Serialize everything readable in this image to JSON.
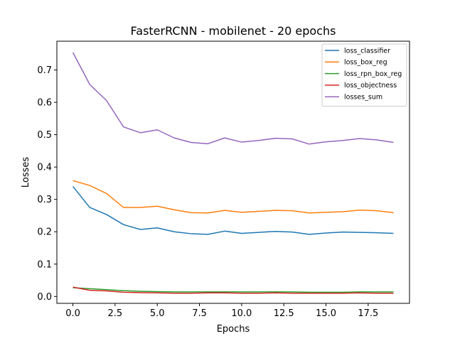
{
  "chart_data": {
    "type": "line",
    "title": "FasterRCNN - mobilenet - 20 epochs",
    "xlabel": "Epochs",
    "ylabel": "Losses",
    "xlim": [
      -0.95,
      19.95
    ],
    "ylim": [
      -0.0213,
      0.7889
    ],
    "xticks": [
      0.0,
      2.5,
      5.0,
      7.5,
      10.0,
      12.5,
      15.0,
      17.5
    ],
    "xtick_labels": [
      "0.0",
      "2.5",
      "5.0",
      "7.5",
      "10.0",
      "12.5",
      "15.0",
      "17.5"
    ],
    "yticks": [
      0.0,
      0.1,
      0.2,
      0.3,
      0.4,
      0.5,
      0.6,
      0.7
    ],
    "ytick_labels": [
      "0.0",
      "0.1",
      "0.2",
      "0.3",
      "0.4",
      "0.5",
      "0.6",
      "0.7"
    ],
    "grid": false,
    "legend_position": "top-right",
    "x": [
      0,
      1,
      2,
      3,
      4,
      5,
      6,
      7,
      8,
      9,
      10,
      11,
      12,
      13,
      14,
      15,
      16,
      17,
      18,
      19
    ],
    "series": [
      {
        "name": "loss_classifier",
        "color": "#1f77b4",
        "values": [
          0.34,
          0.275,
          0.253,
          0.222,
          0.207,
          0.212,
          0.2,
          0.194,
          0.192,
          0.202,
          0.195,
          0.198,
          0.201,
          0.199,
          0.192,
          0.196,
          0.199,
          0.198,
          0.197,
          0.195
        ]
      },
      {
        "name": "loss_box_reg",
        "color": "#ff7f0e",
        "values": [
          0.358,
          0.343,
          0.318,
          0.275,
          0.275,
          0.279,
          0.268,
          0.259,
          0.258,
          0.266,
          0.26,
          0.263,
          0.266,
          0.265,
          0.258,
          0.26,
          0.262,
          0.267,
          0.265,
          0.259
        ]
      },
      {
        "name": "loss_rpn_box_reg",
        "color": "#2ca02c",
        "values": [
          0.027,
          0.024,
          0.021,
          0.018,
          0.016,
          0.015,
          0.014,
          0.014,
          0.014,
          0.014,
          0.014,
          0.014,
          0.014,
          0.014,
          0.013,
          0.013,
          0.013,
          0.014,
          0.014,
          0.014
        ]
      },
      {
        "name": "loss_objectness",
        "color": "#d62728",
        "values": [
          0.029,
          0.019,
          0.017,
          0.013,
          0.012,
          0.011,
          0.01,
          0.01,
          0.011,
          0.011,
          0.01,
          0.01,
          0.011,
          0.01,
          0.01,
          0.01,
          0.01,
          0.011,
          0.01,
          0.01
        ]
      },
      {
        "name": "losses_sum",
        "color": "#9467bd",
        "values": [
          0.754,
          0.655,
          0.605,
          0.524,
          0.506,
          0.515,
          0.49,
          0.476,
          0.472,
          0.49,
          0.477,
          0.482,
          0.489,
          0.487,
          0.471,
          0.478,
          0.482,
          0.488,
          0.484,
          0.476
        ]
      }
    ]
  }
}
